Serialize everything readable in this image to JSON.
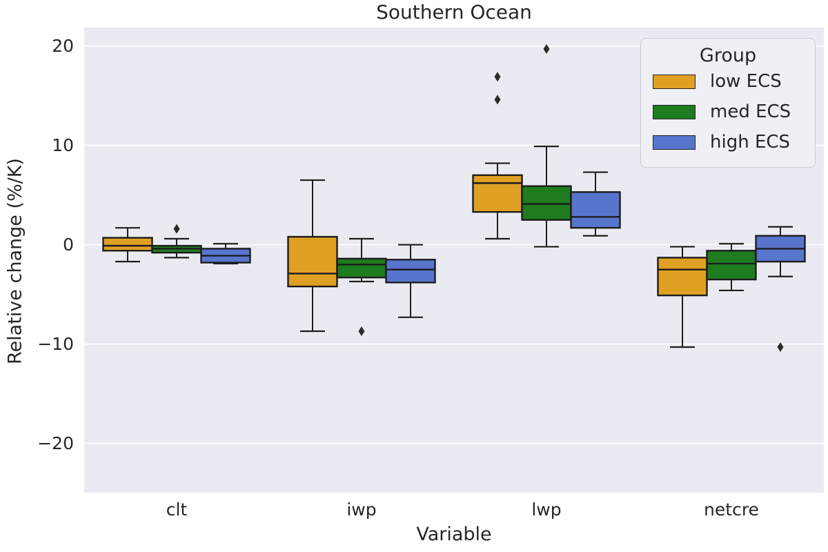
{
  "title": "Southern Ocean",
  "axes": {
    "xlabel": "Variable",
    "ylabel": "Relative change (%/K)",
    "yticks": [
      20,
      10,
      0,
      -10,
      -20
    ],
    "grid": true,
    "background": "#eaeaf2",
    "gridline_color": "#ffffff"
  },
  "legend": {
    "title": "Group",
    "position": "upper right",
    "entries": [
      {
        "label": "low ECS",
        "color": "#dfa023"
      },
      {
        "label": "med ECS",
        "color": "#1e7b1e"
      },
      {
        "label": "high ECS",
        "color": "#5875ce"
      }
    ]
  },
  "chart_data": {
    "type": "box",
    "title": "Southern Ocean",
    "xlabel": "Variable",
    "ylabel": "Relative change (%/K)",
    "categories": [
      "clt",
      "iwp",
      "lwp",
      "netcre"
    ],
    "ylim": [
      -24.95,
      21.85
    ],
    "yticks": [
      20,
      10,
      0,
      -10,
      -20
    ],
    "legend_title": "Group",
    "series": [
      {
        "name": "low ECS",
        "color": "#dfa023",
        "boxes": [
          {
            "whisker_low": -1.7,
            "q1": -0.6,
            "median": -0.1,
            "q3": 0.7,
            "whisker_high": 1.7,
            "outliers": []
          },
          {
            "whisker_low": -8.7,
            "q1": -4.2,
            "median": -2.9,
            "q3": 0.8,
            "whisker_high": 6.5,
            "outliers": []
          },
          {
            "whisker_low": 0.6,
            "q1": 3.3,
            "median": 6.2,
            "q3": 7.0,
            "whisker_high": 8.2,
            "outliers": [
              14.6,
              16.9
            ]
          },
          {
            "whisker_low": -10.3,
            "q1": -5.1,
            "median": -2.5,
            "q3": -1.3,
            "whisker_high": -0.2,
            "outliers": []
          }
        ]
      },
      {
        "name": "med ECS",
        "color": "#1e7b1e",
        "boxes": [
          {
            "whisker_low": -1.3,
            "q1": -0.8,
            "median": -0.4,
            "q3": -0.1,
            "whisker_high": 0.6,
            "outliers": [
              1.6
            ]
          },
          {
            "whisker_low": -3.7,
            "q1": -3.3,
            "median": -2.0,
            "q3": -1.4,
            "whisker_high": 0.6,
            "outliers": [
              -8.7
            ]
          },
          {
            "whisker_low": -0.2,
            "q1": 2.5,
            "median": 4.1,
            "q3": 5.9,
            "whisker_high": 9.9,
            "outliers": [
              19.7
            ]
          },
          {
            "whisker_low": -4.6,
            "q1": -3.5,
            "median": -1.9,
            "q3": -0.6,
            "whisker_high": 0.1,
            "outliers": []
          }
        ]
      },
      {
        "name": "high ECS",
        "color": "#5875ce",
        "boxes": [
          {
            "whisker_low": -1.9,
            "q1": -1.8,
            "median": -1.1,
            "q3": -0.4,
            "whisker_high": 0.1,
            "outliers": []
          },
          {
            "whisker_low": -7.3,
            "q1": -3.8,
            "median": -2.5,
            "q3": -1.5,
            "whisker_high": 0.0,
            "outliers": []
          },
          {
            "whisker_low": 0.9,
            "q1": 1.7,
            "median": 2.8,
            "q3": 5.3,
            "whisker_high": 7.3,
            "outliers": []
          },
          {
            "whisker_low": -3.2,
            "q1": -1.7,
            "median": -0.4,
            "q3": 0.9,
            "whisker_high": 1.8,
            "outliers": [
              -10.3
            ]
          }
        ]
      }
    ]
  }
}
